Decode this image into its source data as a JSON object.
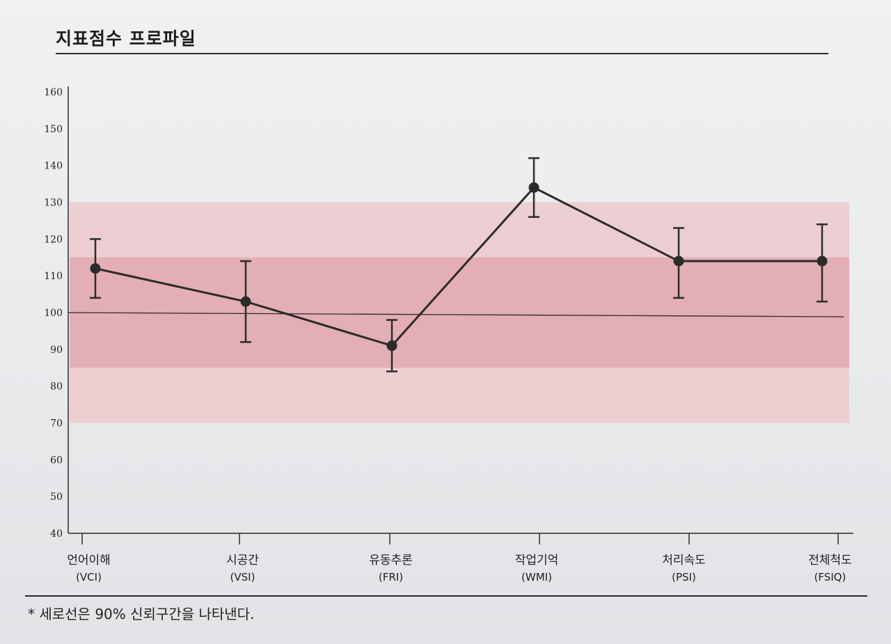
{
  "page": {
    "title": "지표점수 프로파일",
    "footnote": "* 세로선은 90% 신뢰구간을 나타낸다."
  },
  "chart_data": {
    "type": "line",
    "title": "지표점수 프로파일",
    "xlabel": "",
    "ylabel": "",
    "ylim": [
      40,
      160
    ],
    "yticks": [
      40,
      50,
      60,
      70,
      80,
      90,
      100,
      110,
      120,
      130,
      140,
      150,
      160
    ],
    "categories": [
      {
        "name": "언어이해",
        "abbr": "(VCI)"
      },
      {
        "name": "시공간",
        "abbr": "(VSI)"
      },
      {
        "name": "유동추론",
        "abbr": "(FRI)"
      },
      {
        "name": "작업기억",
        "abbr": "(WMI)"
      },
      {
        "name": "처리속도",
        "abbr": "(PSI)"
      },
      {
        "name": "전체척도",
        "abbr": "(FSIQ)"
      }
    ],
    "values": [
      112,
      103,
      91,
      134,
      114,
      114
    ],
    "ci_low": [
      104,
      92,
      84,
      126,
      104,
      103
    ],
    "ci_high": [
      120,
      114,
      98,
      142,
      123,
      124
    ],
    "reference_line": 100,
    "bands": [
      {
        "from": 70,
        "to": 130,
        "color": "#ecc9cd"
      },
      {
        "from": 85,
        "to": 115,
        "color": "#e2a8b0"
      }
    ],
    "line_color": "#2b2b2b",
    "grid": false
  }
}
